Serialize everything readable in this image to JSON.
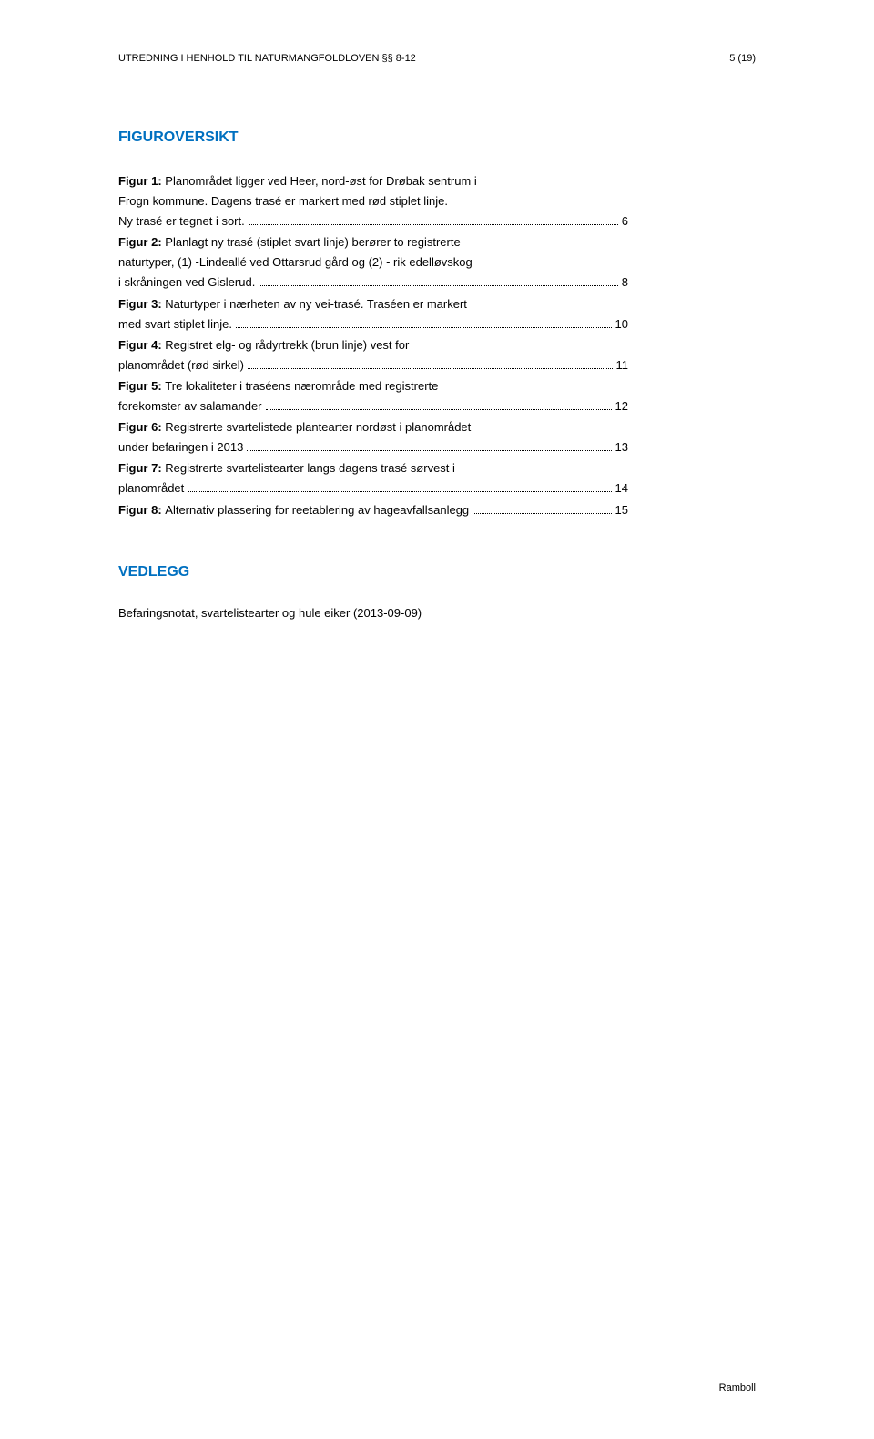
{
  "header": {
    "left": "UTREDNING I HENHOLD TIL NATURMANGFOLDLOVEN §§ 8-12",
    "right": "5 (19)"
  },
  "figuroversikt": {
    "title": "FIGUROVERSIKT",
    "entries": [
      {
        "label": "Figur 1:",
        "lines_before": [
          "Planområdet ligger ved Heer, nord-øst for Drøbak sentrum i",
          "Frogn kommune. Dagens trasé er markert med rød stiplet linje."
        ],
        "last_line": "Ny trasé er tegnet i sort.",
        "page": "6"
      },
      {
        "label": "Figur 2:",
        "lines_before": [
          "Planlagt ny trasé (stiplet svart linje) berører to registrerte",
          "naturtyper, (1) -Lindeallé ved Ottarsrud gård og (2) - rik edelløvskog"
        ],
        "last_line": "i skråningen ved Gislerud.",
        "page": "8"
      },
      {
        "label": "Figur 3:",
        "lines_before": [
          "Naturtyper i nærheten av ny vei-trasé. Traséen er markert"
        ],
        "last_line": "med svart stiplet linje.",
        "page": "10"
      },
      {
        "label": "Figur 4:",
        "lines_before": [
          "Registret elg- og rådyrtrekk (brun linje) vest for"
        ],
        "last_line": "planområdet (rød sirkel)",
        "page": "11"
      },
      {
        "label": "Figur 5:",
        "lines_before": [
          "Tre lokaliteter i traséens nærområde med registrerte"
        ],
        "last_line": "forekomster av salamander",
        "page": "12"
      },
      {
        "label": "Figur 6:",
        "lines_before": [
          "Registrerte svartelistede plantearter nordøst i planområdet"
        ],
        "last_line": "under befaringen i 2013",
        "page": "13"
      },
      {
        "label": "Figur 7:",
        "lines_before": [
          "Registrerte svartelistearter langs dagens trasé sørvest i"
        ],
        "last_line": "planområdet",
        "page": "14"
      },
      {
        "label": "Figur 8:",
        "lines_before": [],
        "last_line": "Alternativ plassering for reetablering av hageavfallsanlegg",
        "page": "15"
      }
    ]
  },
  "vedlegg": {
    "title": "VEDLEGG",
    "text": "Befaringsnotat, svartelistearter og hule eiker (2013-09-09)"
  },
  "footer": {
    "text": "Ramboll"
  }
}
